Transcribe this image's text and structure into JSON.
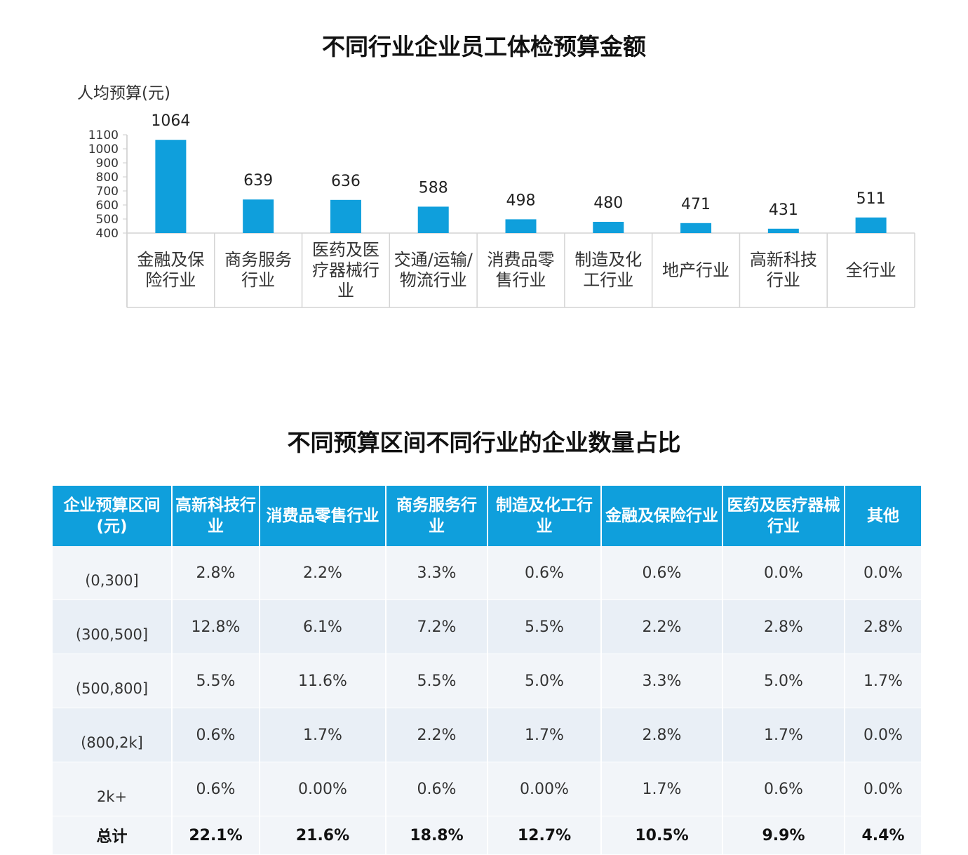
{
  "chart_data": {
    "type": "bar",
    "title": "不同行业企业员工体检预算金额",
    "ylabel": "人均预算(元)",
    "xlabel": "",
    "categories": [
      "金融及保险行业",
      "商务服务行业",
      "医药及医疗器械行业",
      "交通/运输/物流行业",
      "消费品零售行业",
      "制造及化工行业",
      "地产行业",
      "高新科技行业",
      "全行业"
    ],
    "values": [
      1064,
      639,
      636,
      588,
      498,
      480,
      471,
      431,
      511
    ],
    "data_labels": [
      "1064",
      "639",
      "636",
      "588",
      "498",
      "480",
      "471",
      "431",
      "511"
    ],
    "yticks": [
      400,
      500,
      600,
      700,
      800,
      900,
      1000,
      1100
    ],
    "ylim": [
      400,
      1100
    ],
    "grid": false,
    "bar_color": "#0f9fdc"
  },
  "table": {
    "title": "不同预算区间不同行业的企业数量占比",
    "headers": [
      "企业预算区间(元)",
      "高新科技行业",
      "消费品零售行业",
      "商务服务行业",
      "制造及化工行业",
      "金融及保险行业",
      "医药及医疗器械行业",
      "其他"
    ],
    "rows": [
      [
        "(0,300]",
        "2.8%",
        "2.2%",
        "3.3%",
        "0.6%",
        "0.6%",
        "0.0%",
        "0.0%"
      ],
      [
        "(300,500]",
        "12.8%",
        "6.1%",
        "7.2%",
        "5.5%",
        "2.2%",
        "2.8%",
        "2.8%"
      ],
      [
        "(500,800]",
        "5.5%",
        "11.6%",
        "5.5%",
        "5.0%",
        "3.3%",
        "5.0%",
        "1.7%"
      ],
      [
        "(800,2k]",
        "0.6%",
        "1.7%",
        "2.2%",
        "1.7%",
        "2.8%",
        "1.7%",
        "0.0%"
      ],
      [
        "2k+",
        "0.6%",
        "0.00%",
        "0.6%",
        "0.00%",
        "1.7%",
        "0.6%",
        "0.0%"
      ],
      [
        "总计",
        "22.1%",
        "21.6%",
        "18.8%",
        "12.7%",
        "10.5%",
        "9.9%",
        "4.4%"
      ]
    ],
    "header_color": "#0f9fdc"
  }
}
